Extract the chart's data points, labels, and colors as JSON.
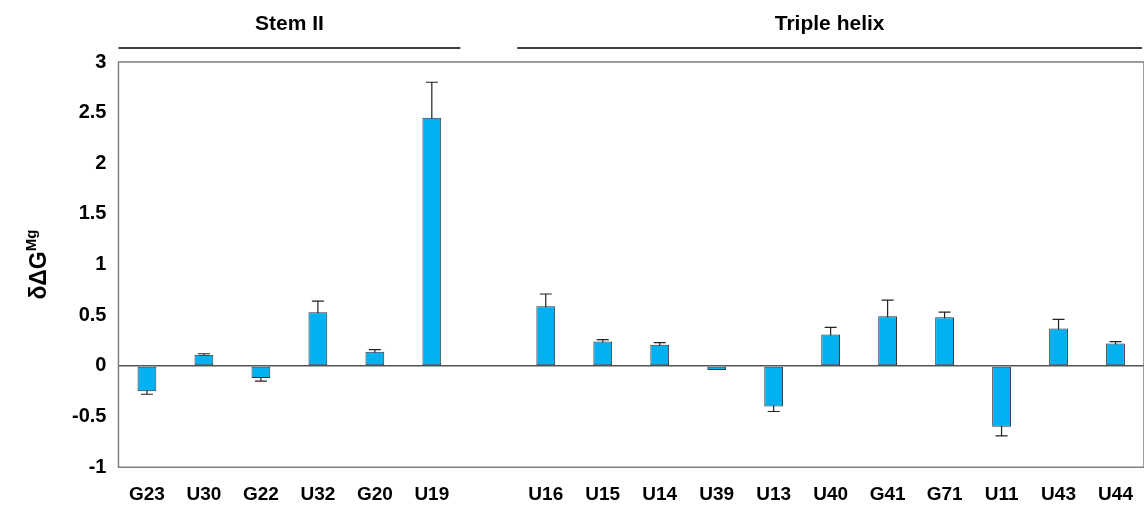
{
  "chart_data": {
    "type": "bar",
    "ylabel": "δΔG$^{Mg}$",
    "annotations": [
      "Stem II",
      "Triple helix"
    ],
    "categories": [
      "G23",
      "U30",
      "G22",
      "U32",
      "G20",
      "U19",
      null,
      "U16",
      "U15",
      "U14",
      "U39",
      "U13",
      "U40",
      "G41",
      "G71",
      "U11",
      "U43",
      "U44"
    ],
    "values": [
      -0.25,
      0.11,
      -0.12,
      0.53,
      0.14,
      2.45,
      null,
      0.59,
      0.24,
      0.21,
      -0.04,
      -0.4,
      0.31,
      0.49,
      0.48,
      -0.6,
      0.37,
      0.22
    ],
    "errors": [
      0.03,
      0.01,
      0.03,
      0.11,
      0.02,
      0.35,
      null,
      0.12,
      0.02,
      0.02,
      null,
      0.05,
      0.07,
      0.16,
      0.05,
      0.09,
      0.09,
      0.02
    ],
    "color": "#00b0f0",
    "ylim": [
      -1,
      3
    ],
    "yticks": [
      -1,
      -0.5,
      0,
      0.5,
      1,
      1.5,
      2,
      2.5,
      3
    ],
    "legend": false
  }
}
